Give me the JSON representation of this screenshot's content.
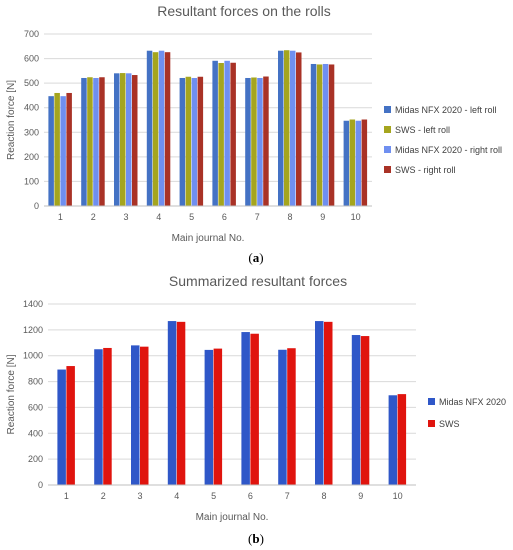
{
  "chart_data": [
    {
      "type": "bar",
      "title": "Resultant forces on the rolls",
      "xlabel": "Main journal No.",
      "ylabel": "Reaction force [N]",
      "ylim": [
        0,
        700
      ],
      "yticks": [
        0,
        100,
        200,
        300,
        400,
        500,
        600,
        700
      ],
      "grid": true,
      "legend_position": "right",
      "categories": [
        "1",
        "2",
        "3",
        "4",
        "5",
        "6",
        "7",
        "8",
        "9",
        "10"
      ],
      "series": [
        {
          "name": "Midas NFX 2020 - left roll",
          "color": "#4472C4",
          "values": [
            447,
            521,
            540,
            632,
            521,
            591,
            521,
            632,
            578,
            347
          ]
        },
        {
          "name": "SWS - left roll",
          "color": "#A5A51E",
          "values": [
            460,
            524,
            541,
            626,
            526,
            582,
            523,
            634,
            576,
            352
          ]
        },
        {
          "name": "Midas NFX 2020 - right roll",
          "color": "#6F8FF0",
          "values": [
            447,
            521,
            540,
            632,
            521,
            591,
            521,
            632,
            578,
            347
          ]
        },
        {
          "name": "SWS - right roll",
          "color": "#A93226",
          "values": [
            460,
            524,
            533,
            626,
            526,
            583,
            527,
            625,
            576,
            352
          ]
        }
      ]
    },
    {
      "type": "bar",
      "title": "Summarized resultant forces",
      "xlabel": "Main journal No.",
      "ylabel": "Reaction force [N]",
      "ylim": [
        0,
        1400
      ],
      "yticks": [
        0,
        200,
        400,
        600,
        800,
        1000,
        1200,
        1400
      ],
      "grid": true,
      "legend_position": "right",
      "categories": [
        "1",
        "2",
        "3",
        "4",
        "5",
        "6",
        "7",
        "8",
        "9",
        "10"
      ],
      "series": [
        {
          "name": "Midas NFX 2020",
          "color": "#2F57C8",
          "values": [
            893,
            1050,
            1080,
            1268,
            1045,
            1183,
            1046,
            1268,
            1160,
            694
          ]
        },
        {
          "name": "SWS",
          "color": "#E0140E",
          "values": [
            920,
            1060,
            1070,
            1262,
            1055,
            1170,
            1058,
            1262,
            1152,
            703
          ]
        }
      ]
    }
  ],
  "captions": {
    "a_open": "(",
    "a_letter": "a",
    "a_close": ")",
    "b_open": "(",
    "b_letter": "b",
    "b_close": ")"
  }
}
